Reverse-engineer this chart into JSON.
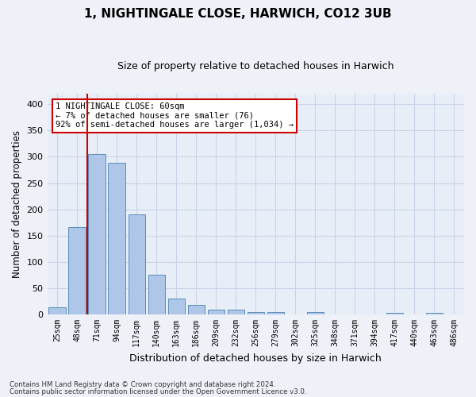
{
  "title1": "1, NIGHTINGALE CLOSE, HARWICH, CO12 3UB",
  "title2": "Size of property relative to detached houses in Harwich",
  "xlabel": "Distribution of detached houses by size in Harwich",
  "ylabel": "Number of detached properties",
  "categories": [
    "25sqm",
    "48sqm",
    "71sqm",
    "94sqm",
    "117sqm",
    "140sqm",
    "163sqm",
    "186sqm",
    "209sqm",
    "232sqm",
    "256sqm",
    "279sqm",
    "302sqm",
    "325sqm",
    "348sqm",
    "371sqm",
    "394sqm",
    "417sqm",
    "440sqm",
    "463sqm",
    "486sqm"
  ],
  "values": [
    14,
    166,
    305,
    289,
    190,
    76,
    31,
    18,
    9,
    9,
    5,
    5,
    0,
    4,
    0,
    0,
    0,
    3,
    0,
    3,
    0
  ],
  "bar_color": "#aec6e8",
  "bar_edge_color": "#5b8db8",
  "vline_color": "#cc0000",
  "annotation_text": "1 NIGHTINGALE CLOSE: 60sqm\n← 7% of detached houses are smaller (76)\n92% of semi-detached houses are larger (1,034) →",
  "annotation_box_color": "#ffffff",
  "annotation_box_edge": "#cc0000",
  "ylim": [
    0,
    420
  ],
  "yticks": [
    0,
    50,
    100,
    150,
    200,
    250,
    300,
    350,
    400
  ],
  "grid_color": "#c8d4e8",
  "bg_color": "#e8eef7",
  "fig_bg_color": "#eef2f8",
  "footer1": "Contains HM Land Registry data © Crown copyright and database right 2024.",
  "footer2": "Contains public sector information licensed under the Open Government Licence v3.0."
}
